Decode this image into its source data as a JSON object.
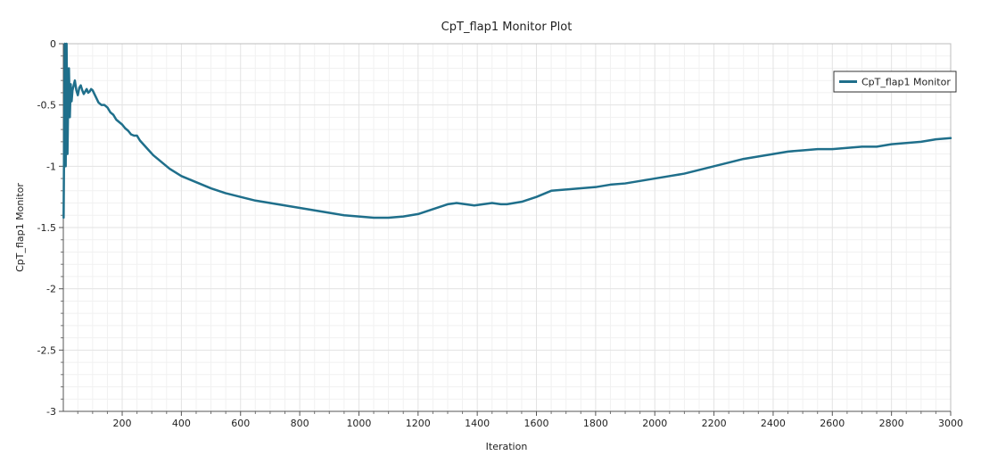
{
  "chart_data": {
    "type": "line",
    "title": "CpT_flap1 Monitor Plot",
    "xlabel": "Iteration",
    "ylabel": "CpT_flap1 Monitor",
    "xlim": [
      1,
      3000
    ],
    "ylim": [
      -3,
      0
    ],
    "x_ticks": [
      200,
      400,
      600,
      800,
      1000,
      1200,
      1400,
      1600,
      1800,
      2000,
      2200,
      2400,
      2600,
      2800,
      3000
    ],
    "y_ticks": [
      0,
      -0.5,
      -1,
      -1.5,
      -2,
      -2.5,
      -3
    ],
    "x_tick_labels": [
      "200",
      "400",
      "600",
      "800",
      "1000",
      "1200",
      "1400",
      "1600",
      "1800",
      "2000",
      "2200",
      "2400",
      "2600",
      "2800",
      "3000"
    ],
    "y_tick_labels": [
      "0",
      "-0.5",
      "-1",
      "-1.5",
      "-2",
      "-2.5",
      "-3"
    ],
    "grid": true,
    "legend_position": "top-right",
    "series": [
      {
        "name": "CpT_flap1 Monitor",
        "color": "#1f6f8b",
        "x": [
          2,
          6,
          9,
          12,
          15,
          18,
          20,
          23,
          26,
          29,
          32,
          35,
          40,
          45,
          50,
          55,
          60,
          65,
          70,
          75,
          80,
          85,
          90,
          95,
          100,
          110,
          120,
          130,
          140,
          150,
          160,
          170,
          180,
          190,
          200,
          210,
          220,
          230,
          240,
          250,
          260,
          275,
          290,
          305,
          320,
          340,
          360,
          380,
          400,
          430,
          460,
          500,
          550,
          600,
          650,
          700,
          750,
          800,
          850,
          900,
          950,
          1000,
          1050,
          1080,
          1100,
          1150,
          1200,
          1250,
          1300,
          1330,
          1360,
          1390,
          1420,
          1450,
          1480,
          1500,
          1550,
          1600,
          1650,
          1700,
          1750,
          1800,
          1850,
          1900,
          1950,
          2000,
          2050,
          2100,
          2150,
          2200,
          2250,
          2300,
          2350,
          2400,
          2450,
          2500,
          2550,
          2600,
          2650,
          2700,
          2750,
          2800,
          2850,
          2900,
          2950,
          3000
        ],
        "y": [
          -1.42,
          0.0,
          -1.0,
          0.0,
          -0.9,
          -0.35,
          -0.2,
          -0.6,
          -0.33,
          -0.47,
          -0.38,
          -0.35,
          -0.3,
          -0.38,
          -0.42,
          -0.36,
          -0.34,
          -0.38,
          -0.41,
          -0.39,
          -0.37,
          -0.4,
          -0.39,
          -0.37,
          -0.38,
          -0.43,
          -0.48,
          -0.5,
          -0.5,
          -0.52,
          -0.56,
          -0.58,
          -0.62,
          -0.64,
          -0.66,
          -0.69,
          -0.71,
          -0.74,
          -0.75,
          -0.75,
          -0.79,
          -0.83,
          -0.87,
          -0.91,
          -0.94,
          -0.98,
          -1.02,
          -1.05,
          -1.08,
          -1.11,
          -1.14,
          -1.18,
          -1.22,
          -1.25,
          -1.28,
          -1.3,
          -1.32,
          -1.34,
          -1.36,
          -1.38,
          -1.4,
          -1.41,
          -1.42,
          -1.42,
          -1.42,
          -1.41,
          -1.39,
          -1.35,
          -1.31,
          -1.3,
          -1.31,
          -1.32,
          -1.31,
          -1.3,
          -1.31,
          -1.31,
          -1.29,
          -1.25,
          -1.2,
          -1.19,
          -1.18,
          -1.17,
          -1.15,
          -1.14,
          -1.12,
          -1.1,
          -1.08,
          -1.06,
          -1.03,
          -1.0,
          -0.97,
          -0.94,
          -0.92,
          -0.9,
          -0.88,
          -0.87,
          -0.86,
          -0.86,
          -0.85,
          -0.84,
          -0.84,
          -0.82,
          -0.81,
          -0.8,
          -0.78,
          -0.77
        ]
      }
    ]
  }
}
